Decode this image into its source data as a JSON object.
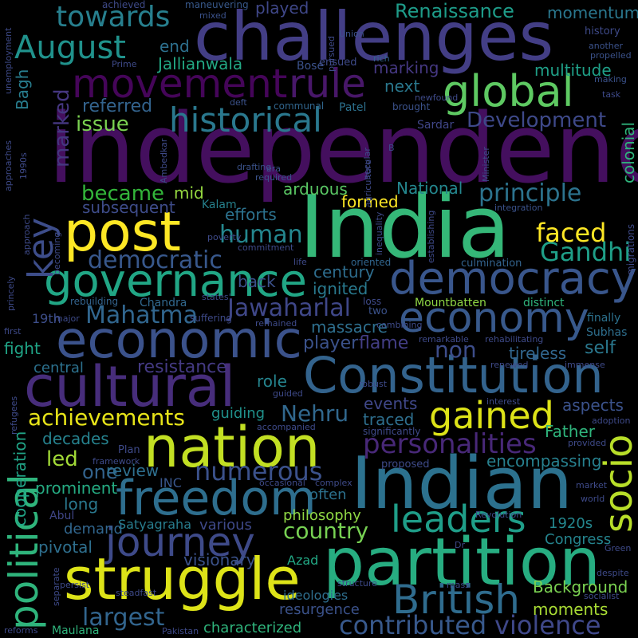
{
  "words": [
    {
      "text": "independence",
      "color": "#440f5e"
    },
    {
      "text": "India",
      "color": "#35b778"
    },
    {
      "text": "challenges",
      "color": "#433e85"
    },
    {
      "text": "Indian",
      "color": "#2c718e"
    },
    {
      "text": "partition",
      "color": "#27ad81"
    },
    {
      "text": "nation",
      "color": "#c2df23"
    },
    {
      "text": "struggle",
      "color": "#dde318"
    },
    {
      "text": "Constitution",
      "color": "#33638d"
    },
    {
      "text": "cultural",
      "color": "#472d7b"
    },
    {
      "text": "freedom",
      "color": "#2e6e8e"
    },
    {
      "text": "economic",
      "color": "#3b528b"
    },
    {
      "text": "governance",
      "color": "#21a685"
    },
    {
      "text": "democracy",
      "color": "#39568c"
    },
    {
      "text": "post",
      "color": "#fde725"
    },
    {
      "text": "movement",
      "color": "#450559"
    },
    {
      "text": "global",
      "color": "#5ec962"
    },
    {
      "text": "economy",
      "color": "#38598c"
    },
    {
      "text": "political",
      "color": "#2fb47c"
    },
    {
      "text": "historical",
      "color": "#2a788e"
    },
    {
      "text": "journey",
      "color": "#3e4a89"
    },
    {
      "text": "British",
      "color": "#2f6c8e"
    },
    {
      "text": "leaders",
      "color": "#1f9e89"
    },
    {
      "text": "gained",
      "color": "#dde318"
    },
    {
      "text": "towards",
      "color": "#277f8e"
    },
    {
      "text": "August",
      "color": "#20928c"
    },
    {
      "text": "rule",
      "color": "#481769"
    },
    {
      "text": "socio",
      "color": "#b8de29"
    },
    {
      "text": "key",
      "color": "#3d4d8a"
    },
    {
      "text": "personalities",
      "color": "#482878"
    },
    {
      "text": "contributed",
      "color": "#38598c"
    },
    {
      "text": "violence",
      "color": "#3f4889"
    },
    {
      "text": "Nehru",
      "color": "#31688e"
    },
    {
      "text": "numerous",
      "color": "#3b518b"
    },
    {
      "text": "Gandhi",
      "color": "#1f9f88"
    },
    {
      "text": "faced",
      "color": "#fde725"
    },
    {
      "text": "human",
      "color": "#24878e"
    },
    {
      "text": "democratic",
      "color": "#38588c"
    },
    {
      "text": "country",
      "color": "#77d153"
    },
    {
      "text": "largest",
      "color": "#32658e"
    },
    {
      "text": "Mahatma",
      "color": "#31668e"
    },
    {
      "text": "Jawaharlal",
      "color": "#3f4788"
    },
    {
      "text": "achievements",
      "color": "#e7e419"
    },
    {
      "text": "Development",
      "color": "#3e4989"
    },
    {
      "text": "principle",
      "color": "#2c738e"
    },
    {
      "text": "became",
      "color": "#33b63a"
    },
    {
      "text": "marked",
      "color": "#453781"
    },
    {
      "text": "issue",
      "color": "#7ad151"
    },
    {
      "text": "referred",
      "color": "#33638d"
    },
    {
      "text": "Renaissance",
      "color": "#1e9c89"
    },
    {
      "text": "momentum",
      "color": "#2a778e"
    },
    {
      "text": "played",
      "color": "#3f4788"
    },
    {
      "text": "end",
      "color": "#2d708e"
    },
    {
      "text": "Jallianwala",
      "color": "#22a884"
    },
    {
      "text": "marking",
      "color": "#453882"
    },
    {
      "text": "next",
      "color": "#2a788e"
    },
    {
      "text": "multitude",
      "color": "#1fa088"
    },
    {
      "text": "Bagh",
      "color": "#287d8e"
    },
    {
      "text": "mid",
      "color": "#95d840"
    },
    {
      "text": "efforts",
      "color": "#2c728e"
    },
    {
      "text": "subsequent",
      "color": "#3e4c8a"
    },
    {
      "text": "arduous",
      "color": "#5ac864"
    },
    {
      "text": "National",
      "color": "#24878e"
    },
    {
      "text": "formed",
      "color": "#fde725"
    },
    {
      "text": "back",
      "color": "#3b518b"
    },
    {
      "text": "century",
      "color": "#2e6d8e"
    },
    {
      "text": "ignited",
      "color": "#29798e"
    },
    {
      "text": "massacre",
      "color": "#2e6f8e"
    },
    {
      "text": "player",
      "color": "#3b528b"
    },
    {
      "text": "non",
      "color": "#3d4d8a"
    },
    {
      "text": "flame",
      "color": "#433e85"
    },
    {
      "text": "fight",
      "color": "#20a486"
    },
    {
      "text": "central",
      "color": "#2c718e"
    },
    {
      "text": "resistance",
      "color": "#443a83"
    },
    {
      "text": "role",
      "color": "#25848e"
    },
    {
      "text": "guiding",
      "color": "#20928c"
    },
    {
      "text": "decades",
      "color": "#26828e"
    },
    {
      "text": "led",
      "color": "#a2da37"
    },
    {
      "text": "one",
      "color": "#33638d"
    },
    {
      "text": "review",
      "color": "#2e6f8e"
    },
    {
      "text": "cooperation",
      "color": "#20a386"
    },
    {
      "text": "colonial",
      "color": "#2fb47c"
    },
    {
      "text": "self",
      "color": "#2a788e"
    },
    {
      "text": "tireless",
      "color": "#31668e"
    },
    {
      "text": "events",
      "color": "#3f4788"
    },
    {
      "text": "traced",
      "color": "#2e6f8e"
    },
    {
      "text": "aspects",
      "color": "#3b528b"
    },
    {
      "text": "Father",
      "color": "#2fb47c"
    },
    {
      "text": "encompassing",
      "color": "#27808e"
    },
    {
      "text": "prominent",
      "color": "#25ab82"
    },
    {
      "text": "long",
      "color": "#2a788e"
    },
    {
      "text": "demand",
      "color": "#31668e"
    },
    {
      "text": "pivotal",
      "color": "#2e6f8e"
    },
    {
      "text": "various",
      "color": "#3e4989"
    },
    {
      "text": "visionary",
      "color": "#3b528b"
    },
    {
      "text": "philosophy",
      "color": "#8fd744"
    },
    {
      "text": "often",
      "color": "#2c718e"
    },
    {
      "text": "Satyagraha",
      "color": "#287d8e"
    },
    {
      "text": "1920s",
      "color": "#24878e"
    },
    {
      "text": "Congress",
      "color": "#25848e"
    },
    {
      "text": "Background",
      "color": "#7ad151"
    },
    {
      "text": "moments",
      "color": "#a8db34"
    },
    {
      "text": "characterized",
      "color": "#2fb47c"
    },
    {
      "text": "resurgence",
      "color": "#3b528b"
    },
    {
      "text": "ideologies",
      "color": "#2e6e8e"
    },
    {
      "text": "Maulana",
      "color": "#2fb47c"
    },
    {
      "text": "Abul",
      "color": "#404688"
    },
    {
      "text": "Azad",
      "color": "#22a884"
    },
    {
      "text": "INC",
      "color": "#39568c"
    },
    {
      "text": "Kalam",
      "color": "#26828e"
    },
    {
      "text": "19th",
      "color": "#3d4e8a"
    },
    {
      "text": "Chandra",
      "color": "#31688e"
    },
    {
      "text": "Mountbatten",
      "color": "#8fd744"
    },
    {
      "text": "distinct",
      "color": "#2fb47c"
    },
    {
      "text": "Subhas",
      "color": "#2e6f8e"
    },
    {
      "text": "finally",
      "color": "#2c718e"
    },
    {
      "text": "Sardar",
      "color": "#404688"
    },
    {
      "text": "Patel",
      "color": "#2c718e"
    },
    {
      "text": "Bose",
      "color": "#3b528b"
    },
    {
      "text": "communal",
      "color": "#31668e"
    },
    {
      "text": "brought",
      "color": "#3b528b"
    },
    {
      "text": "newfound",
      "color": "#3e4a89"
    },
    {
      "text": "achieved",
      "color": "#3e4a89"
    },
    {
      "text": "maneuvering",
      "color": "#38598c"
    },
    {
      "text": "mixed",
      "color": "#3b528b"
    },
    {
      "text": "pursued",
      "color": "#3e4a89"
    },
    {
      "text": "Union",
      "color": "#3b528b"
    },
    {
      "text": "Prime",
      "color": "#3e4a89"
    },
    {
      "text": "ensued",
      "color": "#3e4a89"
    },
    {
      "text": "rich",
      "color": "#33638d"
    },
    {
      "text": "history",
      "color": "#3e4a89"
    },
    {
      "text": "another",
      "color": "#3b528b"
    },
    {
      "text": "propelled",
      "color": "#3b528b"
    },
    {
      "text": "making",
      "color": "#3b528b"
    },
    {
      "text": "task",
      "color": "#3e4a89"
    },
    {
      "text": "deft",
      "color": "#3b528b"
    },
    {
      "text": "required",
      "color": "#3b528b"
    },
    {
      "text": "drafting",
      "color": "#3b528b"
    },
    {
      "text": "era",
      "color": "#3b528b"
    },
    {
      "text": "integration",
      "color": "#3b528b"
    },
    {
      "text": "poverty",
      "color": "#3e4a89"
    },
    {
      "text": "commitment",
      "color": "#3e4a89"
    },
    {
      "text": "life",
      "color": "#3e4a89"
    },
    {
      "text": "oriented",
      "color": "#31668e"
    },
    {
      "text": "culmination",
      "color": "#33638d"
    },
    {
      "text": "rebuilding",
      "color": "#33638d"
    },
    {
      "text": "states'",
      "color": "#3e4a89"
    },
    {
      "text": "loss",
      "color": "#3e4a89"
    },
    {
      "text": "two",
      "color": "#3b528b"
    },
    {
      "text": "major",
      "color": "#3e4a89"
    },
    {
      "text": "suffering",
      "color": "#3e4a89"
    },
    {
      "text": "remained",
      "color": "#3e4a89"
    },
    {
      "text": "combining",
      "color": "#3e4a89"
    },
    {
      "text": "remarkable",
      "color": "#3e4a89"
    },
    {
      "text": "rehabilitating",
      "color": "#3e4a89"
    },
    {
      "text": "renewed",
      "color": "#3e4a89"
    },
    {
      "text": "immense",
      "color": "#3e4a89"
    },
    {
      "text": "guided",
      "color": "#3e4a89"
    },
    {
      "text": "robust",
      "color": "#3e4a89"
    },
    {
      "text": "interest",
      "color": "#3e4a89"
    },
    {
      "text": "adoption",
      "color": "#3e4a89"
    },
    {
      "text": "accompanied",
      "color": "#3e4a89"
    },
    {
      "text": "significantly",
      "color": "#3e4a89"
    },
    {
      "text": "provided",
      "color": "#3e4a89"
    },
    {
      "text": "framework",
      "color": "#3e4a89"
    },
    {
      "text": "Plan",
      "color": "#3e4a89"
    },
    {
      "text": "proposed",
      "color": "#3e4a89"
    },
    {
      "text": "occasional",
      "color": "#3e4a89"
    },
    {
      "text": "complex",
      "color": "#3e4a89"
    },
    {
      "text": "market",
      "color": "#3e4a89"
    },
    {
      "text": "world",
      "color": "#3e4a89"
    },
    {
      "text": "Revolution",
      "color": "#3e4a89"
    },
    {
      "text": "Dr",
      "color": "#3e4a89"
    },
    {
      "text": "Green",
      "color": "#3e4a89"
    },
    {
      "text": "despite",
      "color": "#3e4a89"
    },
    {
      "text": "structure",
      "color": "#3e4a89"
    },
    {
      "text": "mass",
      "color": "#3e4a89"
    },
    {
      "text": "persist",
      "color": "#3e4a89"
    },
    {
      "text": "steadfast",
      "color": "#3e4a89"
    },
    {
      "text": "socialist",
      "color": "#3e4a89"
    },
    {
      "text": "reforms",
      "color": "#3e4a89"
    },
    {
      "text": "Pakistan",
      "color": "#3e4a89"
    },
    {
      "text": "separate",
      "color": "#3e4a89"
    },
    {
      "text": "refugees",
      "color": "#3e4a89"
    },
    {
      "text": "first",
      "color": "#3e4a89"
    },
    {
      "text": "princely",
      "color": "#3e4a89"
    },
    {
      "text": "becoming",
      "color": "#3e4a89"
    },
    {
      "text": "approach",
      "color": "#3e4a89"
    },
    {
      "text": "approaches",
      "color": "#3e4a89"
    },
    {
      "text": "1990s",
      "color": "#3e4a89"
    },
    {
      "text": "unemployment",
      "color": "#3e4a89"
    },
    {
      "text": "Ambedkar",
      "color": "#3e4a89"
    },
    {
      "text": "secular",
      "color": "#3e4a89"
    },
    {
      "text": "agriculture",
      "color": "#3e4a89"
    },
    {
      "text": "inequality",
      "color": "#3e4a89"
    },
    {
      "text": "establishing",
      "color": "#3e4a89"
    },
    {
      "text": "Minister",
      "color": "#3e4a89"
    },
    {
      "text": "migrations",
      "color": "#3e4a89"
    },
    {
      "text": "B",
      "color": "#3e4a89"
    }
  ]
}
